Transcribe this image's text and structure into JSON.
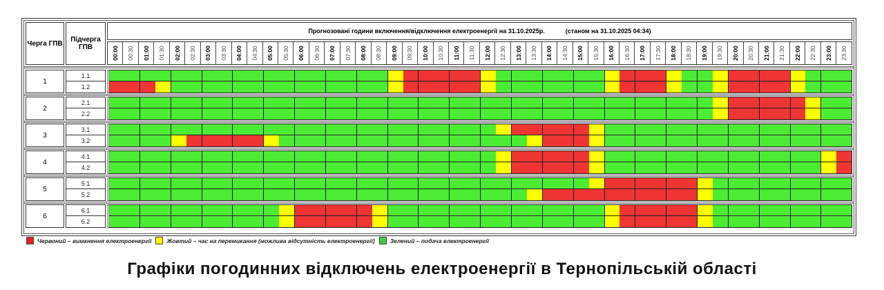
{
  "table": {
    "header": {
      "queue_label": "Черга ГПВ",
      "subqueue_label": "Підчерга ГПВ",
      "title": "Прогнозовані години включення/відключення електроенергії на 31.10.2025р.",
      "as_of": "(станом на 31.10.2025 04:34)"
    },
    "times": [
      "00:00",
      "00:30",
      "01:00",
      "01:30",
      "02:00",
      "02:30",
      "03:00",
      "03:30",
      "04:00",
      "04:30",
      "05:00",
      "05:30",
      "06:00",
      "06:30",
      "07:00",
      "07:30",
      "08:00",
      "08:30",
      "09:00",
      "09:30",
      "10:00",
      "10:30",
      "11:00",
      "11:30",
      "12:00",
      "12:30",
      "13:00",
      "13:30",
      "14:00",
      "14:30",
      "15:00",
      "15:30",
      "16:00",
      "16:30",
      "17:00",
      "17:30",
      "18:00",
      "18:30",
      "19:00",
      "19:30",
      "20:00",
      "20:30",
      "21:00",
      "21:30",
      "22:00",
      "22:30",
      "23:00",
      "23:30"
    ],
    "groups": [
      {
        "queue": "1",
        "subqueues": [
          {
            "label": "1.1",
            "slots": "GGGGGGGGGGGGGGGGGGYRRRRRYGGGGGGGYRRRYGGYRRRRYGGG"
          },
          {
            "label": "1.2",
            "slots": "RRRYGGGGGGGGGGGGGGYRRRRRYGGGGGGGYRRRYGGYRRRRYGGG"
          }
        ]
      },
      {
        "queue": "2",
        "subqueues": [
          {
            "label": "2.1",
            "slots": "GGGGGGGGGGGGGGGGGGGGGGGGGGGGGGGGGGGGGGGYRRRRRYGG"
          },
          {
            "label": "2.2",
            "slots": "GGGGGGGGGGGGGGGGGGGGGGGGGGGGGGGGGGGGGGGYRRRRRYGG"
          }
        ]
      },
      {
        "queue": "3",
        "subqueues": [
          {
            "label": "3.1",
            "slots": "GGGGGGGGGGGGGGGGGGGGGGGGGYRRRRRYGGGGGGGGGGGGGGGG"
          },
          {
            "label": "3.2",
            "slots": "GGGGYRRRRRYGGGGGGGGGGGGGGGGYRRRYGGGGGGGGGGGGGGGG"
          }
        ]
      },
      {
        "queue": "4",
        "subqueues": [
          {
            "label": "4.1",
            "slots": "GGGGGGGGGGGGGGGGGGGGGGGGGYRRRRRYGGGGGGGGGGGGGGYR"
          },
          {
            "label": "4.2",
            "slots": "GGGGGGGGGGGGGGGGGGGGGGGGGYRRRRRYGGGGGGGGGGGGGGYR"
          }
        ]
      },
      {
        "queue": "5",
        "subqueues": [
          {
            "label": "5.1",
            "slots": "GGGGGGGGGGGGGGGGGGGGGGGGGGGGGGGYRRRRRRYGGGGGGGGG"
          },
          {
            "label": "5.2",
            "slots": "GGGGGGGGGGGGGGGGGGGGGGGGGGGYRRRRRRRRRRYGGGGGGGGG"
          }
        ]
      },
      {
        "queue": "6",
        "subqueues": [
          {
            "label": "6.1",
            "slots": "GGGGGGGGGGGYRRRRRYGGGGGGGGGGGGGGYRRRRRYGGGGGGGGG"
          },
          {
            "label": "6.2",
            "slots": "GGGGGGGGGGGYRRRRRYGGGGGGGGGGGGGGYRRRRRYGGGGGGGGG"
          }
        ]
      }
    ]
  },
  "colors": {
    "red": "#ef3434",
    "yellow": "#ffff00",
    "green": "#4ceb34"
  },
  "legend": [
    {
      "color": "#ef1c1c",
      "label": "Червоний – вимкнення електроенергії"
    },
    {
      "color": "#ffff00",
      "label": "Жовтий – час на перемикання (можлива відсутність електроенергії)"
    },
    {
      "color": "#3acf3a",
      "label": "Зелений – подача електроенергії"
    }
  ],
  "page_title": "Графіки погодинних відключень електроенергії в Тернопільській області"
}
